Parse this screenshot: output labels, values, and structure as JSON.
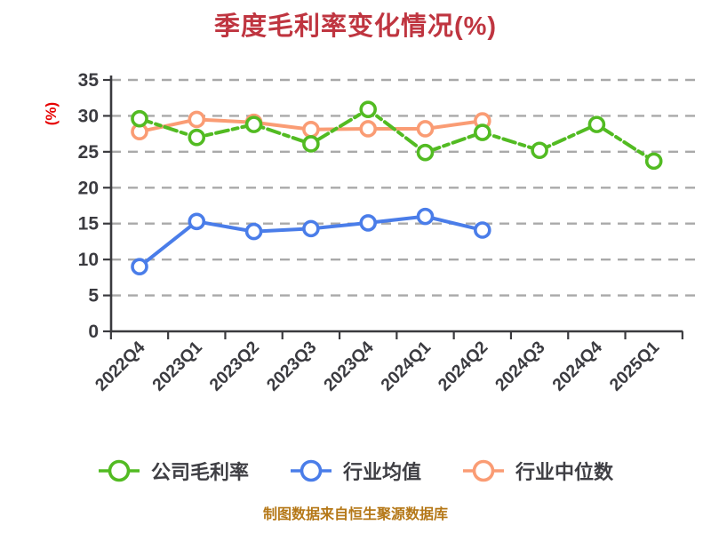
{
  "title": "季度毛利率变化情况(%)",
  "y_axis_label": "(%)",
  "footer": "制图数据来自恒生聚源数据库",
  "colors": {
    "background": "#ffffff",
    "title": "#bf3540",
    "y_axis_label": "#e60000",
    "footer": "#b57818",
    "axis": "#3a3a3e",
    "tick_text": "#3b3b40",
    "gridline": "#a9a9a9",
    "legend_text": "#3f3f44",
    "marker_fill": "#ffffff"
  },
  "chart_data": {
    "type": "line",
    "title": "季度毛利率变化情况(%)",
    "xlabel": "",
    "ylabel": "(%)",
    "categories": [
      "2022Q4",
      "2023Q1",
      "2023Q2",
      "2023Q3",
      "2023Q4",
      "2024Q1",
      "2024Q2",
      "2024Q3",
      "2024Q4",
      "2025Q1"
    ],
    "yticks": [
      0,
      5,
      10,
      15,
      20,
      25,
      30,
      35
    ],
    "ylim": [
      0,
      35
    ],
    "grid": "horizontal-dashed",
    "legend_position": "bottom",
    "x_tick_labels_rotation_deg": 45,
    "series": [
      {
        "name": "公司毛利率",
        "key": "company-gross-margin",
        "color": "#52bb22",
        "line_style": "dashed",
        "marker": "circle-white-fill",
        "values": [
          29.6,
          27.0,
          28.8,
          26.1,
          30.9,
          24.9,
          27.7,
          25.2,
          28.8,
          23.7
        ]
      },
      {
        "name": "行业均值",
        "key": "industry-mean",
        "color": "#4a7de9",
        "line_style": "solid",
        "marker": "circle-white-fill",
        "values": [
          9.0,
          15.3,
          13.9,
          14.3,
          15.1,
          16.0,
          14.1,
          null,
          null,
          null
        ]
      },
      {
        "name": "行业中位数",
        "key": "industry-median",
        "color": "#fa9c74",
        "line_style": "solid",
        "marker": "circle-white-fill",
        "values": [
          27.8,
          29.5,
          29.1,
          28.1,
          28.2,
          28.2,
          29.3,
          null,
          null,
          null
        ]
      }
    ]
  }
}
